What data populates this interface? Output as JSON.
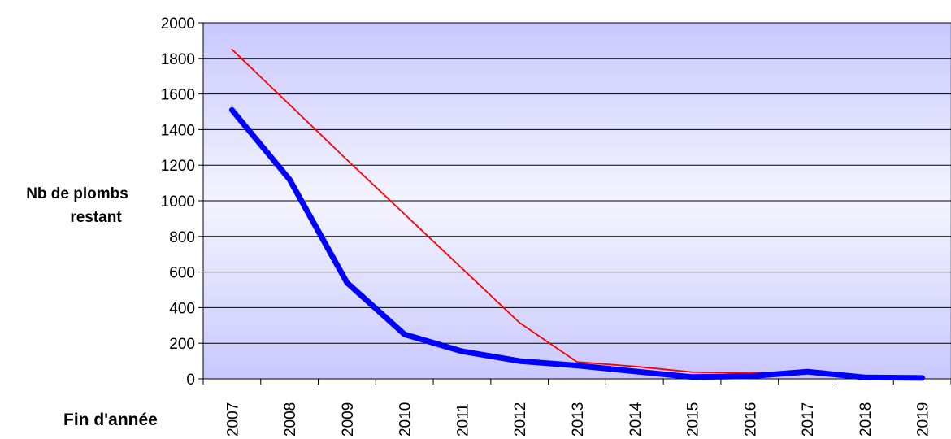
{
  "chart_data": {
    "type": "line",
    "title": "",
    "ylabel_line1": "Nb de plombs",
    "ylabel_line2": "restant",
    "xlabel": "Fin d'année",
    "ylim": [
      0,
      2000
    ],
    "yticks": [
      0,
      200,
      400,
      600,
      800,
      1000,
      1200,
      1400,
      1600,
      1800,
      2000
    ],
    "grid": true,
    "legend": "none",
    "background": "gradient-blue",
    "categories": [
      "2007",
      "2008",
      "2009",
      "2010",
      "2011",
      "2012",
      "2013",
      "2014",
      "2015",
      "2016",
      "2017",
      "2018",
      "2019"
    ],
    "series": [
      {
        "color": "#ff0000",
        "line_weight": "thin",
        "values": [
          1850,
          1540,
          1230,
          925,
          620,
          315,
          95,
          70,
          38,
          32,
          35,
          null,
          null
        ]
      },
      {
        "color": "#0000ff",
        "line_weight": "thick",
        "values": [
          1510,
          1120,
          540,
          250,
          155,
          100,
          75,
          42,
          10,
          15,
          40,
          8,
          5
        ]
      }
    ]
  }
}
